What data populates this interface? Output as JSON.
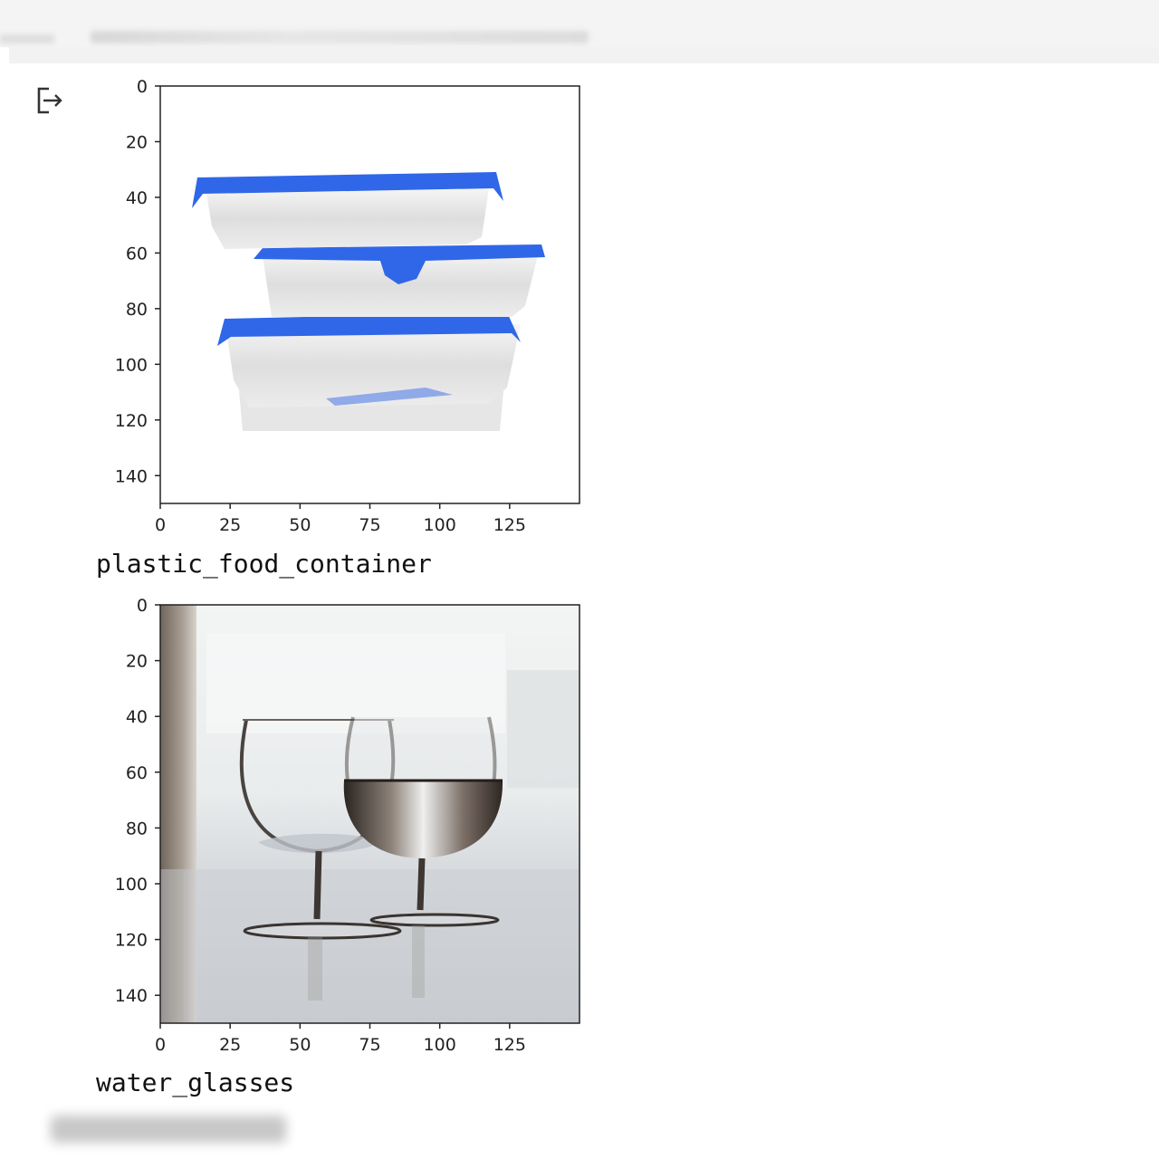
{
  "cell_output": {
    "icon": "output-redirect-icon",
    "plots": [
      {
        "image_subject": "plastic-food-containers",
        "caption": "plastic_food_container",
        "xticks": [
          "0",
          "25",
          "50",
          "75",
          "100",
          "125"
        ],
        "yticks": [
          "0",
          "20",
          "40",
          "60",
          "80",
          "100",
          "120",
          "140"
        ],
        "x_range": [
          0,
          150
        ],
        "y_range": [
          0,
          150
        ]
      },
      {
        "image_subject": "water-glasses",
        "caption": "water_glasses",
        "xticks": [
          "0",
          "25",
          "50",
          "75",
          "100",
          "125"
        ],
        "yticks": [
          "0",
          "20",
          "40",
          "60",
          "80",
          "100",
          "120",
          "140"
        ],
        "x_range": [
          0,
          150
        ],
        "y_range": [
          0,
          150
        ]
      }
    ]
  },
  "colors": {
    "lid_blue": "#2f67e8",
    "axis": "#222222",
    "caption_text": "#111111"
  }
}
